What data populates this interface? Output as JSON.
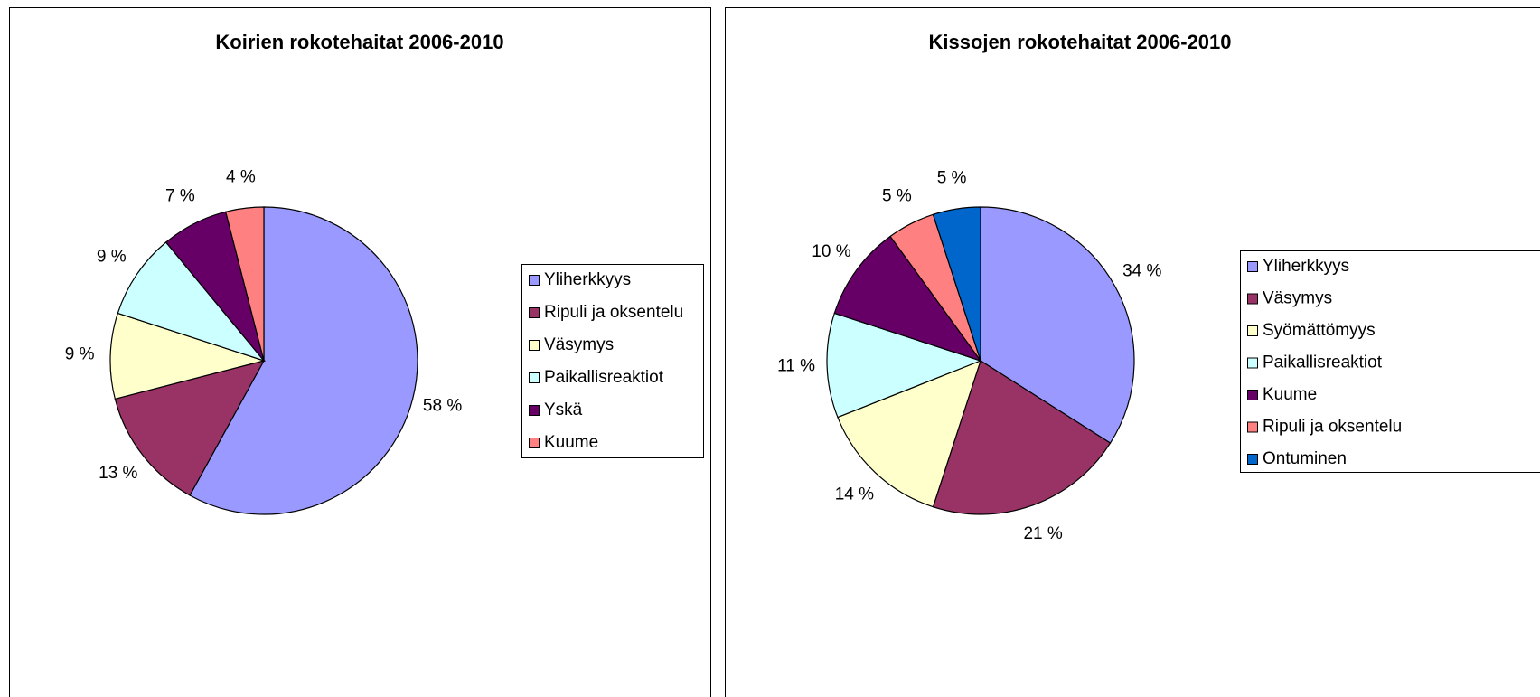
{
  "chart_data": [
    {
      "type": "pie",
      "title": "Koirien rokotehaitat 2006-2010",
      "categories": [
        "Yliherkkyys",
        "Ripuli ja oksentelu",
        "Väsymys",
        "Paikallisreaktiot",
        "Yskä",
        "Kuume"
      ],
      "values": [
        58,
        13,
        9,
        9,
        7,
        4
      ],
      "value_labels": [
        "58 %",
        "13 %",
        "9 %",
        "9 %",
        "7 %",
        "4 %"
      ],
      "colors": [
        "#9999FF",
        "#993366",
        "#FFFFCC",
        "#CCFFFF",
        "#660066",
        "#FF8080"
      ],
      "legend": "right"
    },
    {
      "type": "pie",
      "title": "Kissojen rokotehaitat 2006-2010",
      "categories": [
        "Yliherkkyys",
        "Väsymys",
        "Syömättömyys",
        "Paikallisreaktiot",
        "Kuume",
        "Ripuli ja oksentelu",
        "Ontuminen"
      ],
      "values": [
        34,
        21,
        14,
        11,
        10,
        5,
        5
      ],
      "value_labels": [
        "34 %",
        "21 %",
        "14 %",
        "11 %",
        "10 %",
        "5 %",
        "5 %"
      ],
      "colors": [
        "#9999FF",
        "#993366",
        "#FFFFCC",
        "#CCFFFF",
        "#660066",
        "#FF8080",
        "#0066CC"
      ],
      "legend": "right"
    }
  ]
}
